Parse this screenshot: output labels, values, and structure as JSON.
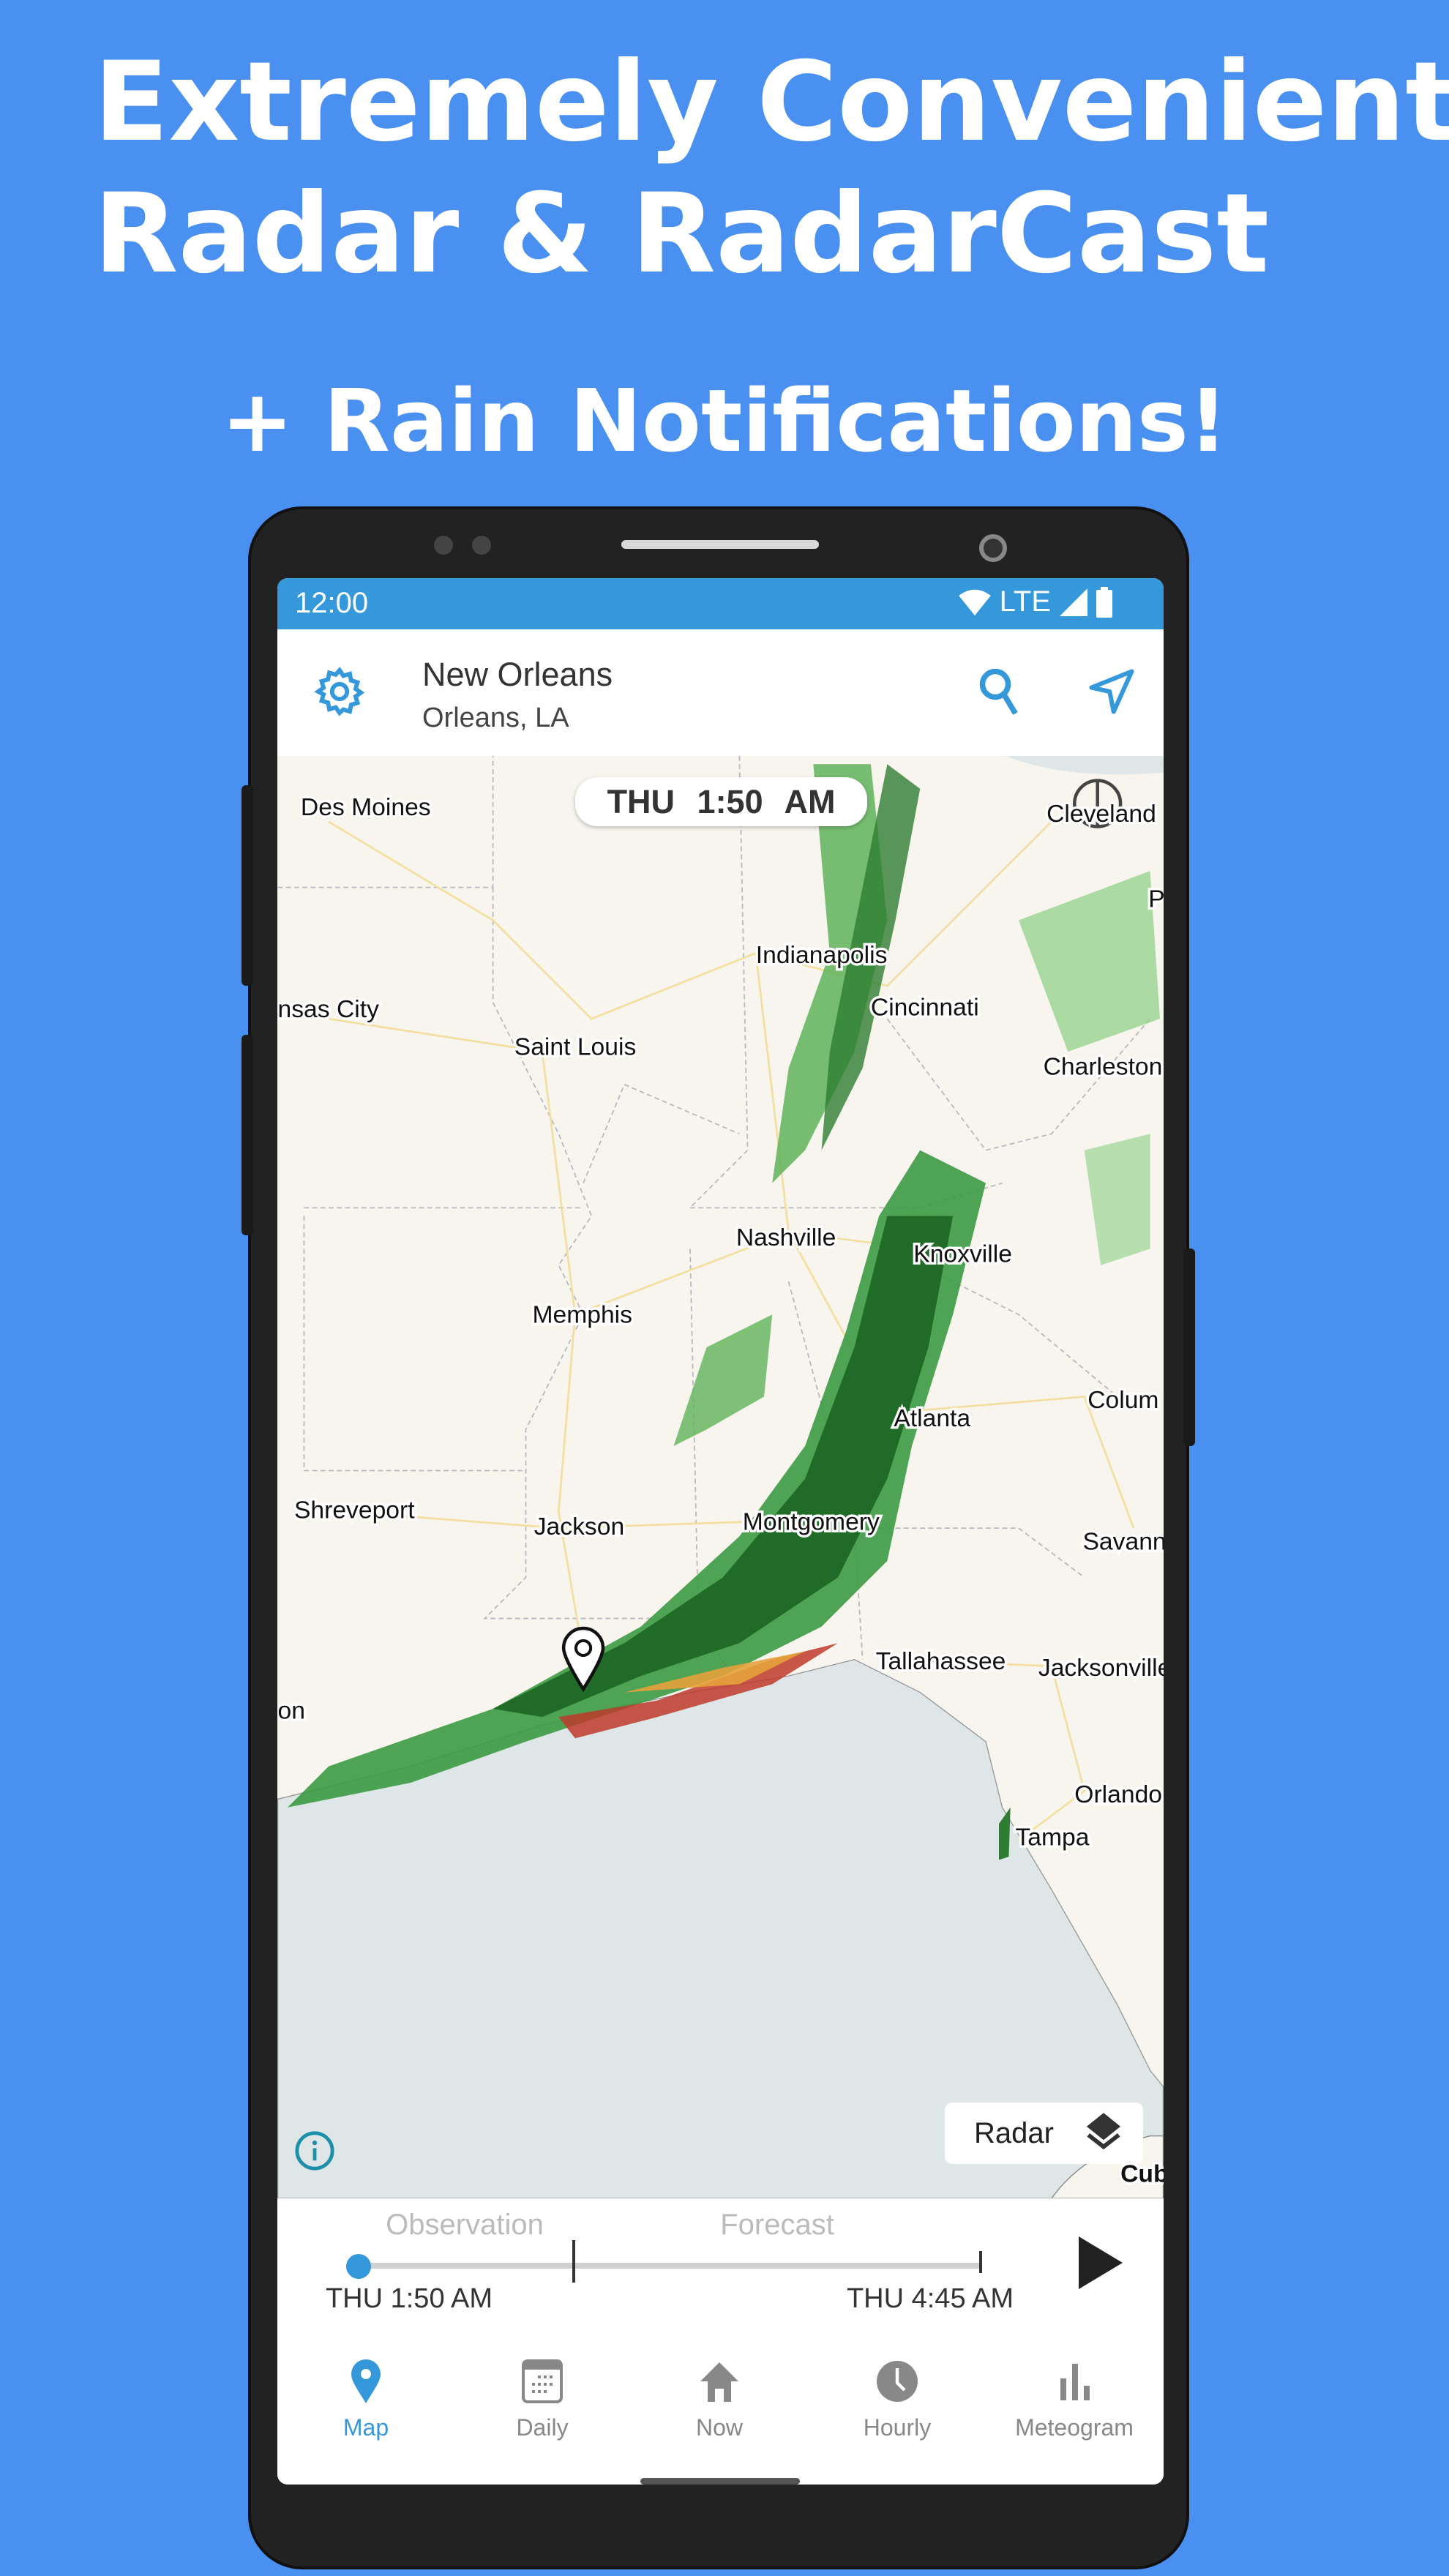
{
  "promo": {
    "line1": "Extremely Convenient",
    "line2": "Radar & RadarCast",
    "line3": "+ Rain Notifications!"
  },
  "status_bar": {
    "time": "12:00",
    "network": "LTE"
  },
  "header": {
    "title": "New Orleans",
    "subtitle": "Orleans, LA"
  },
  "map": {
    "timestamp": "THU   1:50 AM",
    "layer_button": "Radar",
    "cities": [
      "Des Moines",
      "Cleveland",
      "Indianapolis",
      "Cincinnati",
      "nsas City",
      "Saint Louis",
      "Charleston",
      "Nashville",
      "Knoxville",
      "Memphis",
      "Atlanta",
      "Colum",
      "Shreveport",
      "Jackson",
      "Montgomery",
      "Savann",
      "Tallahassee",
      "Jacksonville",
      "on",
      "Orlando",
      "Tampa",
      "Cub",
      "P"
    ]
  },
  "timeline": {
    "observation_label": "Observation",
    "forecast_label": "Forecast",
    "start_time": "THU 1:50 AM",
    "end_time": "THU 4:45 AM",
    "progress": 0
  },
  "nav": [
    {
      "label": "Map",
      "icon": "map-pin-icon",
      "active": true
    },
    {
      "label": "Daily",
      "icon": "calendar-icon"
    },
    {
      "label": "Now",
      "icon": "home-icon"
    },
    {
      "label": "Hourly",
      "icon": "clock-icon"
    },
    {
      "label": "Meteogram",
      "icon": "bar-chart-icon"
    }
  ],
  "colors": {
    "accent": "#3498db",
    "background": "#4a90f0",
    "radar_green": "#2e9a3a"
  }
}
